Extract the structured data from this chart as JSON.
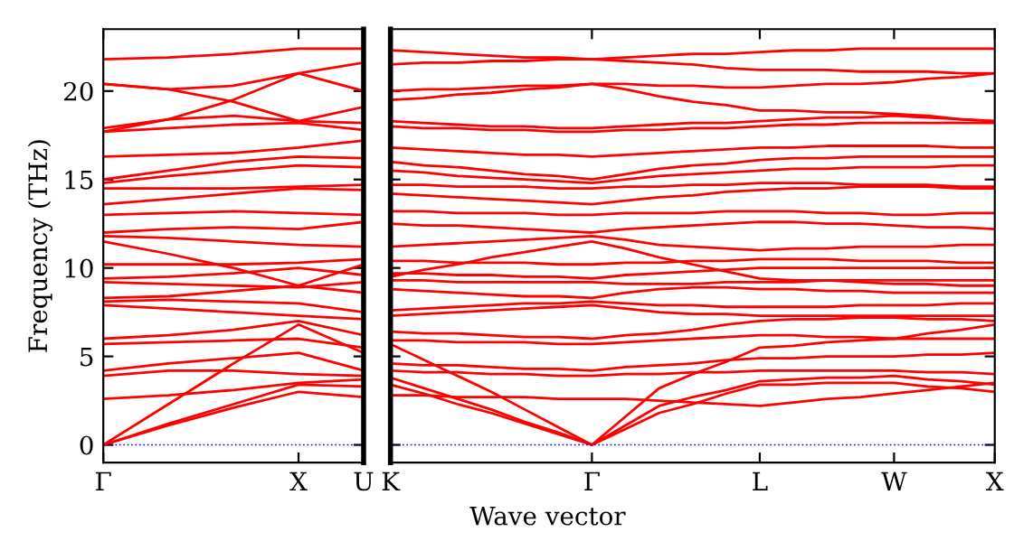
{
  "chart_data": [
    {
      "type": "line",
      "ylabel": "Frequency (THz)",
      "categories": [
        "Γ",
        null,
        null,
        "X",
        "U"
      ],
      "ylim": [
        -1,
        23.5
      ],
      "yticks": [
        0,
        5,
        10,
        15,
        20
      ],
      "grid": false,
      "legend": false,
      "line_style": "solid",
      "marker": "none",
      "ref_lines": [
        {
          "axis": "y",
          "value": 0,
          "color": "#0000ff",
          "line_style": "dotted"
        }
      ],
      "series": [
        {
          "color": "#ff0000",
          "values": [
            0,
            1.1,
            2.1,
            3.0,
            2.7
          ]
        },
        {
          "color": "#ff0000",
          "values": [
            0,
            1.2,
            2.3,
            3.4,
            3.3
          ]
        },
        {
          "color": "#ff0000",
          "values": [
            0,
            2.3,
            4.6,
            6.8,
            5.2
          ]
        },
        {
          "color": "#ff0000",
          "values": [
            2.6,
            2.8,
            3.1,
            3.5,
            3.7
          ]
        },
        {
          "color": "#ff0000",
          "values": [
            3.9,
            4.2,
            4.2,
            4.0,
            3.9
          ]
        },
        {
          "color": "#ff0000",
          "values": [
            4.2,
            4.6,
            4.9,
            5.2,
            4.2
          ]
        },
        {
          "color": "#ff0000",
          "values": [
            5.7,
            5.8,
            5.9,
            6.0,
            5.5
          ]
        },
        {
          "color": "#ff0000",
          "values": [
            6.0,
            6.2,
            6.5,
            7.0,
            6.2
          ]
        },
        {
          "color": "#ff0000",
          "values": [
            7.9,
            7.7,
            7.5,
            7.3,
            7.1
          ]
        },
        {
          "color": "#ff0000",
          "values": [
            8.1,
            8.2,
            8.1,
            8.0,
            7.5
          ]
        },
        {
          "color": "#ff0000",
          "values": [
            8.3,
            8.4,
            8.7,
            9.0,
            8.6
          ]
        },
        {
          "color": "#ff0000",
          "values": [
            9.2,
            9.1,
            9.0,
            8.9,
            9.2
          ]
        },
        {
          "color": "#ff0000",
          "values": [
            9.4,
            9.5,
            9.7,
            10.0,
            9.6
          ]
        },
        {
          "color": "#ff0000",
          "values": [
            10.2,
            10.2,
            10.2,
            10.3,
            10.5
          ]
        },
        {
          "color": "#ff0000",
          "values": [
            11.5,
            10.8,
            10.0,
            9.0,
            10.2
          ]
        },
        {
          "color": "#ff0000",
          "values": [
            11.8,
            11.7,
            11.5,
            11.3,
            11.2
          ]
        },
        {
          "color": "#ff0000",
          "values": [
            12.0,
            12.2,
            12.3,
            12.2,
            12.6
          ]
        },
        {
          "color": "#ff0000",
          "values": [
            13.0,
            13.1,
            13.2,
            13.1,
            13.0
          ]
        },
        {
          "color": "#ff0000",
          "values": [
            13.6,
            13.9,
            14.2,
            14.5,
            14.4
          ]
        },
        {
          "color": "#ff0000",
          "values": [
            14.5,
            14.5,
            14.5,
            14.6,
            14.7
          ]
        },
        {
          "color": "#ff0000",
          "values": [
            14.8,
            15.2,
            15.5,
            15.8,
            15.7
          ]
        },
        {
          "color": "#ff0000",
          "values": [
            15.0,
            15.5,
            16.0,
            16.3,
            16.2
          ]
        },
        {
          "color": "#ff0000",
          "values": [
            16.3,
            16.4,
            16.5,
            16.8,
            17.2
          ]
        },
        {
          "color": "#ff0000",
          "values": [
            17.7,
            17.9,
            18.1,
            18.2,
            17.8
          ]
        },
        {
          "color": "#ff0000",
          "values": [
            17.9,
            18.4,
            18.6,
            18.3,
            18.2
          ]
        },
        {
          "color": "#ff0000",
          "values": [
            20.4,
            20.1,
            19.4,
            18.3,
            19.1
          ]
        },
        {
          "color": "#ff0000",
          "values": [
            20.4,
            20.1,
            20.3,
            21.0,
            20.0
          ]
        },
        {
          "color": "#ff0000",
          "values": [
            21.8,
            21.9,
            22.1,
            22.4,
            22.4
          ]
        },
        {
          "color": "#ff0000",
          "values": [
            17.7,
            18.4,
            19.5,
            21.0,
            21.6
          ]
        }
      ]
    },
    {
      "type": "line",
      "xlabel": "Wave vector",
      "categories": [
        "K",
        null,
        null,
        null,
        null,
        null,
        "Γ",
        null,
        null,
        null,
        null,
        "L",
        null,
        null,
        null,
        "W",
        null,
        null,
        "X"
      ],
      "ylim": [
        -1,
        23.5
      ],
      "yticks": [
        0,
        5,
        10,
        15,
        20
      ],
      "tick_labels": "x",
      "grid": false,
      "legend": false,
      "line_style": "solid",
      "marker": "none",
      "ref_lines": [
        {
          "axis": "y",
          "value": 0,
          "color": "#0000ff",
          "line_style": "dotted"
        }
      ],
      "series": [
        {
          "color": "#ff0000",
          "values": [
            3.4,
            2.9,
            2.3,
            1.8,
            1.2,
            0.6,
            0,
            0.9,
            1.8,
            2.3,
            2.9,
            3.4,
            3.4,
            3.5,
            3.5,
            3.5,
            3.3,
            3.2,
            3.0
          ]
        },
        {
          "color": "#ff0000",
          "values": [
            3.8,
            3.2,
            2.6,
            2.0,
            1.3,
            0.7,
            0,
            1.1,
            2.2,
            2.7,
            3.1,
            3.6,
            3.7,
            3.8,
            3.8,
            3.9,
            3.7,
            3.6,
            3.4
          ]
        },
        {
          "color": "#ff0000",
          "values": [
            5.7,
            4.8,
            3.9,
            3.0,
            2.0,
            1.0,
            0,
            1.6,
            3.2,
            4.0,
            4.7,
            5.5,
            5.6,
            5.8,
            5.9,
            6.0,
            6.3,
            6.5,
            6.8
          ]
        },
        {
          "color": "#ff0000",
          "values": [
            2.8,
            2.8,
            2.7,
            2.7,
            2.7,
            2.6,
            2.6,
            2.6,
            2.5,
            2.4,
            2.3,
            2.2,
            2.4,
            2.6,
            2.7,
            2.9,
            3.1,
            3.3,
            3.5
          ]
        },
        {
          "color": "#ff0000",
          "values": [
            4.2,
            4.1,
            4.1,
            4.0,
            4.0,
            3.9,
            3.9,
            4.0,
            4.0,
            4.1,
            4.1,
            4.2,
            4.2,
            4.2,
            4.2,
            4.2,
            4.1,
            4.1,
            4.0
          ]
        },
        {
          "color": "#ff0000",
          "values": [
            4.6,
            4.5,
            4.5,
            4.4,
            4.3,
            4.3,
            4.2,
            4.4,
            4.5,
            4.6,
            4.8,
            4.9,
            4.9,
            5.0,
            5.0,
            5.0,
            5.1,
            5.1,
            5.2
          ]
        },
        {
          "color": "#ff0000",
          "values": [
            5.9,
            5.9,
            5.8,
            5.8,
            5.8,
            5.7,
            5.7,
            5.8,
            5.9,
            6.0,
            6.1,
            6.2,
            6.2,
            6.1,
            6.1,
            6.0,
            6.0,
            6.0,
            6.0
          ]
        },
        {
          "color": "#ff0000",
          "values": [
            6.4,
            6.3,
            6.3,
            6.2,
            6.1,
            6.1,
            6.0,
            6.2,
            6.3,
            6.5,
            6.8,
            7.0,
            7.1,
            7.1,
            7.2,
            7.2,
            7.1,
            7.1,
            7.0
          ]
        },
        {
          "color": "#ff0000",
          "values": [
            7.3,
            7.4,
            7.5,
            7.6,
            7.7,
            7.8,
            7.9,
            7.7,
            7.5,
            7.4,
            7.4,
            7.3,
            7.3,
            7.3,
            7.3,
            7.3,
            7.3,
            7.3,
            7.3
          ]
        },
        {
          "color": "#ff0000",
          "values": [
            7.6,
            7.7,
            7.8,
            7.9,
            8.0,
            8.0,
            8.1,
            8.0,
            7.9,
            7.9,
            7.8,
            7.8,
            7.8,
            7.8,
            7.9,
            7.9,
            7.9,
            8.0,
            8.0
          ]
        },
        {
          "color": "#ff0000",
          "values": [
            8.8,
            8.7,
            8.6,
            8.5,
            8.4,
            8.4,
            8.3,
            8.6,
            8.8,
            8.9,
            8.9,
            8.8,
            8.8,
            8.7,
            8.7,
            8.6,
            8.6,
            8.6,
            8.6
          ]
        },
        {
          "color": "#ff0000",
          "values": [
            9.3,
            9.3,
            9.2,
            9.2,
            9.2,
            9.2,
            9.2,
            9.1,
            9.1,
            9.1,
            9.2,
            9.2,
            9.2,
            9.3,
            9.3,
            9.3,
            9.3,
            9.3,
            9.3
          ]
        },
        {
          "color": "#ff0000",
          "values": [
            9.7,
            9.7,
            9.6,
            9.6,
            9.5,
            9.5,
            9.4,
            9.6,
            9.7,
            9.8,
            9.9,
            10.0,
            10.0,
            10.0,
            10.0,
            10.0,
            10.0,
            10.0,
            10.0
          ]
        },
        {
          "color": "#ff0000",
          "values": [
            10.4,
            10.4,
            10.3,
            10.3,
            10.3,
            10.2,
            10.2,
            10.3,
            10.3,
            10.4,
            10.4,
            10.5,
            10.5,
            10.5,
            10.4,
            10.4,
            10.4,
            10.3,
            10.3
          ]
        },
        {
          "color": "#ff0000",
          "values": [
            9.5,
            9.9,
            10.2,
            10.6,
            10.9,
            11.2,
            11.5,
            11.1,
            10.6,
            10.2,
            9.8,
            9.4,
            9.3,
            9.3,
            9.2,
            9.1,
            9.1,
            9.0,
            9.0
          ]
        },
        {
          "color": "#ff0000",
          "values": [
            11.2,
            11.3,
            11.4,
            11.5,
            11.6,
            11.7,
            11.8,
            11.6,
            11.3,
            11.2,
            11.1,
            11.0,
            11.1,
            11.1,
            11.2,
            11.2,
            11.2,
            11.3,
            11.3
          ]
        },
        {
          "color": "#ff0000",
          "values": [
            12.5,
            12.4,
            12.4,
            12.3,
            12.2,
            12.1,
            12.0,
            12.2,
            12.3,
            12.4,
            12.5,
            12.6,
            12.6,
            12.5,
            12.5,
            12.4,
            12.3,
            12.3,
            12.2
          ]
        },
        {
          "color": "#ff0000",
          "values": [
            13.2,
            13.2,
            13.1,
            13.1,
            13.1,
            13.0,
            13.0,
            13.1,
            13.1,
            13.1,
            13.2,
            13.2,
            13.2,
            13.1,
            13.1,
            13.0,
            13.0,
            13.1,
            13.1
          ]
        },
        {
          "color": "#ff0000",
          "values": [
            14.2,
            14.1,
            14.0,
            13.9,
            13.8,
            13.7,
            13.6,
            13.8,
            14.0,
            14.1,
            14.3,
            14.4,
            14.5,
            14.5,
            14.6,
            14.6,
            14.6,
            14.5,
            14.5
          ]
        },
        {
          "color": "#ff0000",
          "values": [
            14.7,
            14.7,
            14.6,
            14.6,
            14.6,
            14.5,
            14.5,
            14.6,
            14.6,
            14.7,
            14.7,
            14.8,
            14.8,
            14.8,
            14.7,
            14.7,
            14.7,
            14.6,
            14.6
          ]
        },
        {
          "color": "#ff0000",
          "values": [
            15.5,
            15.4,
            15.2,
            15.1,
            15.0,
            14.9,
            14.8,
            15.0,
            15.2,
            15.3,
            15.4,
            15.5,
            15.6,
            15.6,
            15.7,
            15.7,
            15.7,
            15.8,
            15.8
          ]
        },
        {
          "color": "#ff0000",
          "values": [
            16.0,
            15.8,
            15.7,
            15.5,
            15.3,
            15.2,
            15.0,
            15.3,
            15.6,
            15.8,
            15.9,
            16.1,
            16.2,
            16.2,
            16.3,
            16.3,
            16.3,
            16.3,
            16.3
          ]
        },
        {
          "color": "#ff0000",
          "values": [
            16.8,
            16.7,
            16.6,
            16.5,
            16.4,
            16.4,
            16.3,
            16.4,
            16.5,
            16.6,
            16.7,
            16.8,
            16.8,
            16.9,
            16.9,
            16.9,
            16.9,
            16.8,
            16.8
          ]
        },
        {
          "color": "#ff0000",
          "values": [
            18.0,
            17.9,
            17.9,
            17.8,
            17.8,
            17.7,
            17.7,
            17.8,
            17.8,
            17.9,
            17.9,
            18.0,
            18.1,
            18.1,
            18.2,
            18.2,
            18.2,
            18.2,
            18.2
          ]
        },
        {
          "color": "#ff0000",
          "values": [
            18.3,
            18.2,
            18.1,
            18.0,
            18.0,
            17.9,
            17.9,
            18.0,
            18.1,
            18.2,
            18.2,
            18.3,
            18.4,
            18.5,
            18.5,
            18.6,
            18.5,
            18.4,
            18.3
          ]
        },
        {
          "color": "#ff0000",
          "values": [
            19.5,
            19.6,
            19.8,
            19.9,
            20.1,
            20.2,
            20.4,
            20.1,
            19.7,
            19.4,
            19.2,
            18.9,
            18.9,
            18.8,
            18.8,
            18.7,
            18.6,
            18.4,
            18.3
          ]
        },
        {
          "color": "#ff0000",
          "values": [
            20.0,
            20.1,
            20.1,
            20.2,
            20.3,
            20.3,
            20.4,
            20.4,
            20.3,
            20.3,
            20.2,
            20.2,
            20.3,
            20.4,
            20.4,
            20.5,
            20.7,
            20.8,
            21.0
          ]
        },
        {
          "color": "#ff0000",
          "values": [
            21.5,
            21.6,
            21.6,
            21.7,
            21.7,
            21.8,
            21.8,
            21.9,
            22.0,
            22.1,
            22.1,
            22.2,
            22.3,
            22.3,
            22.4,
            22.4,
            22.4,
            22.4,
            22.4
          ]
        },
        {
          "color": "#ff0000",
          "values": [
            22.3,
            22.2,
            22.1,
            22.0,
            21.9,
            21.9,
            21.8,
            21.7,
            21.6,
            21.5,
            21.3,
            21.2,
            21.2,
            21.2,
            21.1,
            21.1,
            21.1,
            21.0,
            21.0
          ]
        }
      ]
    }
  ]
}
